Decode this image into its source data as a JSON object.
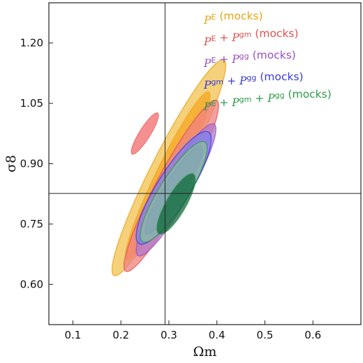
{
  "chart_data": {
    "type": "contour",
    "xlabel": "Ωm",
    "ylabel": "σ8",
    "xlim": [
      0.05,
      0.7
    ],
    "ylim": [
      0.5,
      1.3
    ],
    "xticks": [
      "0.1",
      "0.2",
      "0.3",
      "0.4",
      "0.5",
      "0.6"
    ],
    "yticks": [
      "0.60",
      "0.75",
      "0.90",
      "1.05",
      "1.20"
    ],
    "reference_lines": {
      "x": 0.292,
      "y": 0.826
    },
    "legend_position": "top-right",
    "series": [
      {
        "name": "P^E (mocks)",
        "color": "#f2c24f",
        "label_color": "#e8a317",
        "ellipse_95": {
          "cx": 0.3,
          "cy": 0.89,
          "semi_major": 0.35,
          "semi_minor": 0.03,
          "angle_deg": -63
        },
        "ellipse_68": {
          "cx": 0.298,
          "cy": 0.87,
          "semi_major": 0.27,
          "semi_minor": 0.022,
          "angle_deg": -64
        }
      },
      {
        "name": "P^E + P^gm (mocks)",
        "color": "#f08080",
        "label_color": "#e0524e",
        "ellipse_95": {
          "cx": 0.305,
          "cy": 0.845,
          "semi_major": 0.28,
          "semi_minor": 0.027,
          "angle_deg": -62
        },
        "ellipse_68": {
          "cx": 0.25,
          "cy": 0.975,
          "semi_major": 0.07,
          "semi_minor": 0.01,
          "angle_deg": -58
        }
      },
      {
        "name": "P^E + P^gg (mocks)",
        "color": "#b07acb",
        "label_color": "#9b4fc2",
        "ellipse_95": {
          "cx": 0.315,
          "cy": 0.835,
          "semi_major": 0.22,
          "semi_minor": 0.025,
          "angle_deg": -60
        },
        "ellipse_68": {
          "cx": 0.315,
          "cy": 0.83,
          "semi_major": 0.15,
          "semi_minor": 0.018,
          "angle_deg": -60
        }
      },
      {
        "name": "P^gm + P^gg (mocks)",
        "color": "#7f7ff0",
        "label_color": "#3a3adb",
        "ellipse_95": {
          "cx": 0.31,
          "cy": 0.84,
          "semi_major": 0.19,
          "semi_minor": 0.03,
          "angle_deg": -58
        },
        "ellipse_68": {
          "cx": 0.31,
          "cy": 0.835,
          "semi_major": 0.15,
          "semi_minor": 0.018,
          "angle_deg": -58
        }
      },
      {
        "name": "P^E + P^gm + P^gg (mocks)",
        "color": "#8fbf9f",
        "label_color": "#2e9a4a",
        "ellipse_95": {
          "cx": 0.31,
          "cy": 0.83,
          "semi_major": 0.17,
          "semi_minor": 0.026,
          "angle_deg": -58
        },
        "ellipse_68": {
          "cx": 0.315,
          "cy": 0.8,
          "semi_major": 0.1,
          "semi_minor": 0.018,
          "angle_deg": -60
        }
      }
    ]
  }
}
